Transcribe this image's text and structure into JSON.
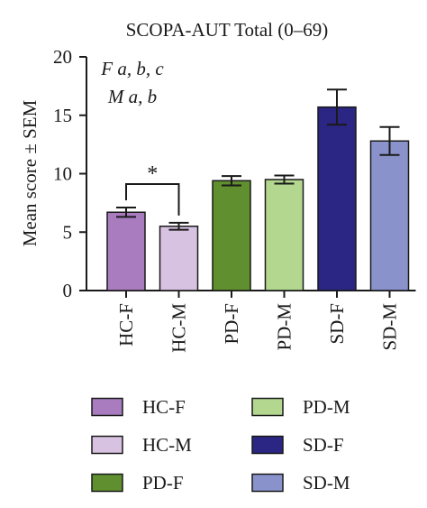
{
  "chart_data": {
    "type": "bar",
    "title": "SCOPA-AUT Total (0–69)",
    "ylabel": "Mean score ± SEM",
    "xlabel": "",
    "ylim": [
      0,
      20
    ],
    "yticks": [
      0,
      5,
      10,
      15,
      20
    ],
    "grid": false,
    "categories": [
      "HC-F",
      "HC-M",
      "PD-F",
      "PD-M",
      "SD-F",
      "SD-M"
    ],
    "values": [
      6.7,
      5.5,
      9.4,
      9.5,
      15.7,
      12.8
    ],
    "errors": [
      0.4,
      0.3,
      0.4,
      0.35,
      1.5,
      1.2
    ],
    "colors": [
      "#a87cbe",
      "#d8c2e2",
      "#5f8f2e",
      "#b3d78f",
      "#2b2583",
      "#8a92cc"
    ],
    "annotations": [
      {
        "text": "F a, b, c",
        "style": "italic"
      },
      {
        "text": "M a, b",
        "style": "italic"
      }
    ],
    "significance": [
      {
        "from": "HC-F",
        "to": "HC-M",
        "label": "*"
      }
    ],
    "legend": {
      "placement": "bottom",
      "entries": [
        {
          "label": "HC-F",
          "color": "#a87cbe"
        },
        {
          "label": "PD-M",
          "color": "#b3d78f"
        },
        {
          "label": "HC-M",
          "color": "#d8c2e2"
        },
        {
          "label": "SD-F",
          "color": "#2b2583"
        },
        {
          "label": "PD-F",
          "color": "#5f8f2e"
        },
        {
          "label": "SD-M",
          "color": "#8a92cc"
        }
      ]
    }
  }
}
